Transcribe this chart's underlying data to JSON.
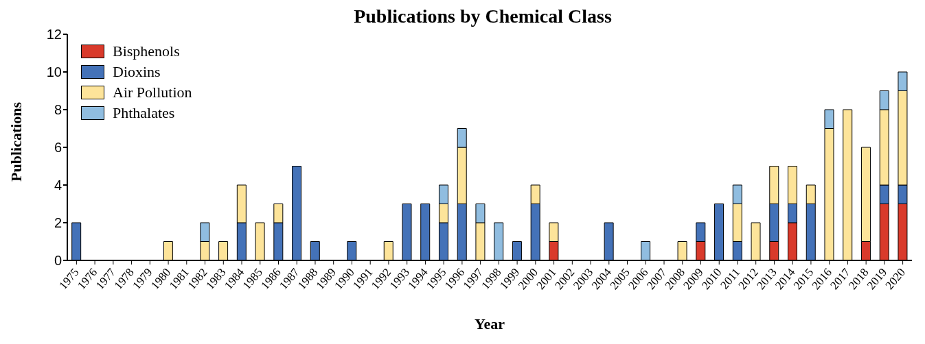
{
  "chart_data": {
    "type": "bar",
    "title": "Publications by Chemical Class",
    "xlabel": "Year",
    "ylabel": "Publications",
    "categories": [
      "1975",
      "1976",
      "1977",
      "1978",
      "1979",
      "1980",
      "1981",
      "1982",
      "1983",
      "1984",
      "1985",
      "1986",
      "1987",
      "1988",
      "1989",
      "1990",
      "1991",
      "1992",
      "1993",
      "1994",
      "1995",
      "1996",
      "1997",
      "1998",
      "1999",
      "2000",
      "2001",
      "2002",
      "2003",
      "2004",
      "2005",
      "2006",
      "2007",
      "2008",
      "2009",
      "2010",
      "2011",
      "2012",
      "2013",
      "2014",
      "2015",
      "2016",
      "2017",
      "2018",
      "2019",
      "2020"
    ],
    "stacked": true,
    "ylim": [
      0,
      12
    ],
    "yticks": [
      0,
      2,
      4,
      6,
      8,
      10,
      12
    ],
    "grid": false,
    "legend": "top left",
    "series": [
      {
        "name": "Bisphenols",
        "color": "#d93a2b",
        "values": [
          0,
          0,
          0,
          0,
          0,
          0,
          0,
          0,
          0,
          0,
          0,
          0,
          0,
          0,
          0,
          0,
          0,
          0,
          0,
          0,
          0,
          0,
          0,
          0,
          0,
          0,
          1,
          0,
          0,
          0,
          0,
          0,
          0,
          0,
          1,
          0,
          0,
          0,
          1,
          2,
          0,
          0,
          0,
          1,
          3,
          3
        ]
      },
      {
        "name": "Dioxins",
        "color": "#4472b8",
        "values": [
          2,
          0,
          0,
          0,
          0,
          0,
          0,
          0,
          0,
          2,
          0,
          2,
          5,
          1,
          0,
          1,
          0,
          0,
          3,
          3,
          2,
          3,
          0,
          0,
          1,
          3,
          0,
          0,
          0,
          2,
          0,
          0,
          0,
          0,
          1,
          3,
          1,
          0,
          2,
          1,
          3,
          0,
          0,
          0,
          1,
          1
        ]
      },
      {
        "name": "Air Pollution",
        "color": "#fde49a",
        "values": [
          0,
          0,
          0,
          0,
          0,
          1,
          0,
          1,
          1,
          2,
          2,
          1,
          0,
          0,
          0,
          0,
          0,
          1,
          0,
          0,
          1,
          3,
          2,
          0,
          0,
          1,
          1,
          0,
          0,
          0,
          0,
          0,
          0,
          1,
          0,
          0,
          2,
          2,
          2,
          2,
          1,
          7,
          8,
          5,
          4,
          5
        ]
      },
      {
        "name": "Phthalates",
        "color": "#90bde0",
        "values": [
          0,
          0,
          0,
          0,
          0,
          0,
          0,
          1,
          0,
          0,
          0,
          0,
          0,
          0,
          0,
          0,
          0,
          0,
          0,
          0,
          1,
          1,
          1,
          2,
          0,
          0,
          0,
          0,
          0,
          0,
          0,
          1,
          0,
          0,
          0,
          0,
          1,
          0,
          0,
          0,
          0,
          1,
          0,
          0,
          1,
          1
        ]
      }
    ]
  }
}
